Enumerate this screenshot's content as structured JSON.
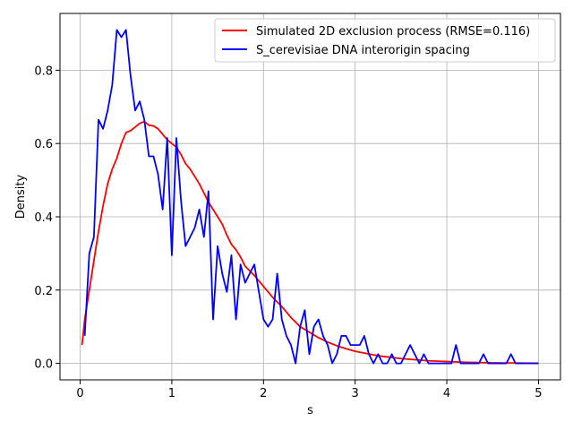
{
  "chart_data": {
    "type": "line",
    "title": "",
    "xlabel": "s",
    "ylabel": "Density",
    "xlim": [
      -0.22,
      5.24
    ],
    "ylim": [
      -0.045,
      0.955
    ],
    "xticks": [
      0,
      1,
      2,
      3,
      4,
      5
    ],
    "yticks": [
      0.0,
      0.2,
      0.4,
      0.6,
      0.8
    ],
    "xtick_labels": [
      "0",
      "1",
      "2",
      "3",
      "4",
      "5"
    ],
    "ytick_labels": [
      "0.0",
      "0.2",
      "0.4",
      "0.6",
      "0.8"
    ],
    "grid": true,
    "legend": "upper-right",
    "series": [
      {
        "name": "Simulated 2D exclusion process (RMSE=0.116)",
        "color": "#ff0000",
        "x": [
          0.02,
          0.05,
          0.1,
          0.15,
          0.2,
          0.25,
          0.3,
          0.35,
          0.4,
          0.45,
          0.5,
          0.55,
          0.6,
          0.65,
          0.7,
          0.75,
          0.8,
          0.85,
          0.9,
          0.95,
          1.0,
          1.05,
          1.1,
          1.15,
          1.2,
          1.3,
          1.4,
          1.5,
          1.55,
          1.6,
          1.65,
          1.7,
          1.75,
          1.8,
          1.9,
          2.0,
          2.1,
          2.2,
          2.3,
          2.4,
          2.5,
          2.6,
          2.7,
          2.8,
          2.9,
          3.0,
          3.1,
          3.2,
          3.3,
          3.4,
          3.5,
          3.6,
          3.7,
          3.8,
          3.9,
          4.0,
          4.2,
          4.4,
          4.6,
          4.8,
          5.0
        ],
        "y": [
          0.05,
          0.12,
          0.2,
          0.28,
          0.36,
          0.43,
          0.49,
          0.53,
          0.56,
          0.6,
          0.63,
          0.635,
          0.645,
          0.655,
          0.66,
          0.65,
          0.648,
          0.64,
          0.625,
          0.61,
          0.6,
          0.59,
          0.57,
          0.545,
          0.53,
          0.49,
          0.44,
          0.4,
          0.38,
          0.35,
          0.325,
          0.31,
          0.29,
          0.265,
          0.24,
          0.21,
          0.18,
          0.155,
          0.125,
          0.1,
          0.085,
          0.07,
          0.058,
          0.048,
          0.04,
          0.033,
          0.028,
          0.023,
          0.019,
          0.016,
          0.013,
          0.011,
          0.009,
          0.007,
          0.006,
          0.005,
          0.003,
          0.002,
          0.001,
          0.0008,
          0.0005
        ]
      },
      {
        "name": "S_cerevisiae DNA interorigin spacing",
        "color": "#0000ff",
        "x": [
          0.05,
          0.1,
          0.15,
          0.2,
          0.25,
          0.3,
          0.35,
          0.4,
          0.45,
          0.5,
          0.55,
          0.6,
          0.65,
          0.7,
          0.75,
          0.8,
          0.85,
          0.9,
          0.95,
          1.0,
          1.05,
          1.1,
          1.15,
          1.2,
          1.25,
          1.3,
          1.35,
          1.4,
          1.45,
          1.5,
          1.55,
          1.6,
          1.65,
          1.7,
          1.75,
          1.8,
          1.85,
          1.9,
          1.95,
          2.0,
          2.05,
          2.1,
          2.15,
          2.2,
          2.25,
          2.3,
          2.35,
          2.4,
          2.45,
          2.5,
          2.55,
          2.6,
          2.65,
          2.7,
          2.75,
          2.8,
          2.85,
          2.9,
          2.95,
          3.0,
          3.05,
          3.1,
          3.15,
          3.2,
          3.25,
          3.3,
          3.35,
          3.4,
          3.45,
          3.5,
          3.55,
          3.6,
          3.65,
          3.7,
          3.75,
          3.8,
          3.85,
          3.9,
          3.95,
          4.0,
          4.05,
          4.1,
          4.15,
          4.2,
          4.25,
          4.3,
          4.35,
          4.4,
          4.45,
          4.5,
          4.55,
          4.6,
          4.65,
          4.7,
          4.75,
          4.8,
          4.85,
          4.9,
          4.95,
          5.0
        ],
        "y": [
          0.075,
          0.3,
          0.345,
          0.665,
          0.64,
          0.69,
          0.76,
          0.91,
          0.89,
          0.91,
          0.785,
          0.69,
          0.715,
          0.665,
          0.565,
          0.565,
          0.515,
          0.42,
          0.615,
          0.295,
          0.615,
          0.445,
          0.32,
          0.345,
          0.37,
          0.42,
          0.345,
          0.47,
          0.12,
          0.32,
          0.245,
          0.195,
          0.295,
          0.12,
          0.27,
          0.22,
          0.245,
          0.27,
          0.195,
          0.12,
          0.1,
          0.12,
          0.245,
          0.12,
          0.075,
          0.05,
          0.0,
          0.1,
          0.145,
          0.025,
          0.1,
          0.12,
          0.075,
          0.05,
          0.0,
          0.025,
          0.075,
          0.075,
          0.05,
          0.05,
          0.05,
          0.075,
          0.025,
          0.0,
          0.025,
          0.0,
          0.0,
          0.025,
          0.0,
          0.0,
          0.025,
          0.05,
          0.025,
          0.0,
          0.025,
          0.0,
          0.0,
          0.0,
          0.0,
          0.0,
          0.0,
          0.05,
          0.0,
          0.0,
          0.0,
          0.0,
          0.0,
          0.025,
          0.0,
          0.0,
          0.0,
          0.0,
          0.0,
          0.025,
          0.0,
          0.0,
          0.0,
          0.0,
          0.0,
          0.0
        ]
      }
    ]
  }
}
